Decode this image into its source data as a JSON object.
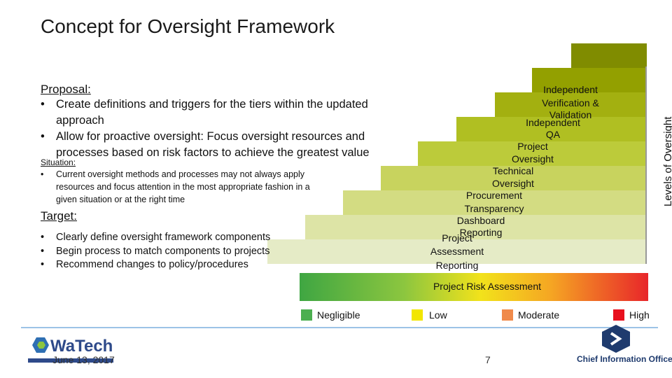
{
  "title": "Concept for Oversight Framework",
  "proposal": {
    "heading": "Proposal:",
    "bullets": [
      [
        "Create definitions and triggers for the tiers within the updated",
        "approach"
      ],
      [
        "Allow for proactive oversight:  Focus oversight resources and",
        "processes based on risk factors to achieve the greatest value"
      ]
    ]
  },
  "situation": {
    "heading": "Situation:",
    "bullets": [
      [
        "Current oversight methods and processes may not always apply",
        "resources and focus attention in the most appropriate fashion in a",
        "given situation or at the right time"
      ]
    ]
  },
  "target": {
    "heading": "Target:",
    "bullets": [
      "Clearly define oversight framework components",
      "Begin process to match components to projects",
      "Recommend changes to policy/procedures"
    ]
  },
  "levels": {
    "axis_label": "Levels of Oversight",
    "steps": [
      [
        "Independent",
        "Verification &",
        "Validation"
      ],
      [
        "Independent",
        "QA"
      ],
      [
        "Project",
        "Oversight"
      ],
      [
        "Technical",
        "Oversight"
      ],
      [
        "Procurement",
        "Transparency"
      ],
      [
        "Dashboard",
        "Reporting"
      ],
      [
        "Project",
        "Assessment",
        "Reporting"
      ]
    ]
  },
  "risk": {
    "label": "Project Risk Assessment",
    "legend": [
      "Negligible",
      "Low",
      "Moderate",
      "High"
    ]
  },
  "footer": {
    "date": "June 13, 2017",
    "page": "7",
    "logo_left": "WaTech",
    "logo_right": "Chief Information Officer"
  }
}
